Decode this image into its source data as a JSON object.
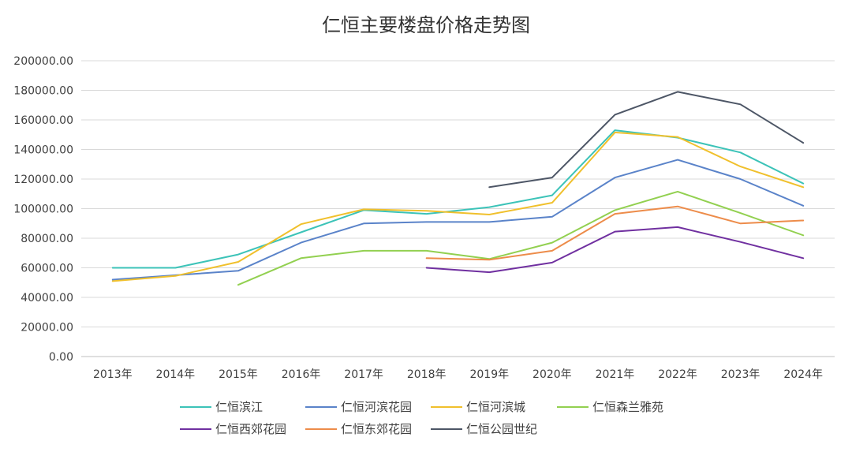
{
  "chart_data": {
    "type": "line",
    "title": "仁恒主要楼盘价格走势图",
    "xlabel": "",
    "ylabel": "",
    "ylim": [
      0,
      200000
    ],
    "y_tick_step": 20000,
    "y_tick_labels": [
      "0.00",
      "20000.00",
      "40000.00",
      "60000.00",
      "80000.00",
      "100000.00",
      "120000.00",
      "140000.00",
      "160000.00",
      "180000.00",
      "200000.00"
    ],
    "categories": [
      "2013年",
      "2014年",
      "2015年",
      "2016年",
      "2017年",
      "2018年",
      "2019年",
      "2020年",
      "2021年",
      "2022年",
      "2023年",
      "2024年"
    ],
    "grid": true,
    "legend_position": "bottom",
    "series": [
      {
        "name": "仁恒滨江",
        "color": "#3cc3b8",
        "values": [
          60000,
          60000,
          69000,
          84000,
          99000,
          96500,
          101000,
          109000,
          153000,
          148000,
          138000,
          117000
        ]
      },
      {
        "name": "仁恒河滨花园",
        "color": "#5a83c9",
        "values": [
          52000,
          55000,
          58000,
          77000,
          90000,
          91000,
          91000,
          94500,
          121000,
          133000,
          120000,
          102000
        ]
      },
      {
        "name": "仁恒河滨城",
        "color": "#f0c02c",
        "values": [
          51000,
          54500,
          64000,
          89500,
          99500,
          98500,
          96000,
          104000,
          151500,
          148500,
          128500,
          114500
        ]
      },
      {
        "name": "仁恒森兰雅苑",
        "color": "#92d050",
        "values": [
          null,
          null,
          48500,
          66500,
          71500,
          71500,
          66000,
          77000,
          99000,
          111500,
          97000,
          82000
        ]
      },
      {
        "name": "仁恒西郊花园",
        "color": "#7030a0",
        "values": [
          null,
          null,
          null,
          null,
          null,
          60000,
          57000,
          63500,
          84500,
          87500,
          77500,
          66500
        ]
      },
      {
        "name": "仁恒东郊花园",
        "color": "#ed8c4a",
        "values": [
          null,
          null,
          null,
          null,
          null,
          66500,
          65500,
          71500,
          96500,
          101500,
          90000,
          92000
        ]
      },
      {
        "name": "仁恒公园世纪",
        "color": "#4d5666",
        "values": [
          null,
          null,
          null,
          null,
          null,
          null,
          114500,
          121000,
          163500,
          179000,
          170500,
          144500
        ]
      }
    ]
  }
}
